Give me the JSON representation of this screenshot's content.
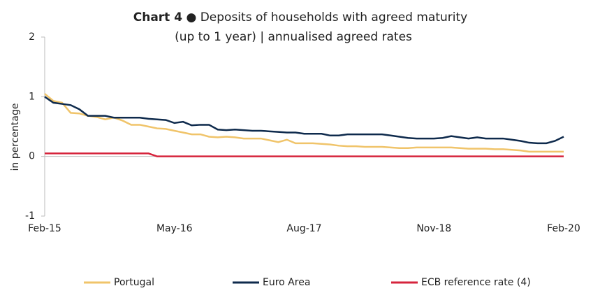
{
  "chart_data": {
    "type": "line",
    "title_prefix": "Chart 4",
    "title": [
      "● Deposits of households with agreed maturity",
      "(up to 1 year) | annualised agreed rates"
    ],
    "y_label": "in percentage",
    "categories": [
      "Feb-15",
      null,
      null,
      null,
      null,
      null,
      null,
      null,
      null,
      null,
      null,
      null,
      null,
      null,
      null,
      "May-16",
      null,
      null,
      null,
      null,
      null,
      null,
      null,
      null,
      null,
      null,
      null,
      null,
      null,
      null,
      "Aug-17",
      null,
      null,
      null,
      null,
      null,
      null,
      null,
      null,
      null,
      null,
      null,
      null,
      null,
      null,
      "Nov-18",
      null,
      null,
      null,
      null,
      null,
      null,
      null,
      null,
      null,
      null,
      null,
      null,
      null,
      null,
      "Feb-20"
    ],
    "ylim": [
      -1,
      2
    ],
    "yticks": [
      -1,
      0,
      1,
      2
    ],
    "grid": false,
    "legend": "bottom",
    "series": [
      {
        "name": "Portugal",
        "color": "#f0c46a",
        "values": [
          1.05,
          0.93,
          0.9,
          0.73,
          0.72,
          0.68,
          0.66,
          0.62,
          0.65,
          0.6,
          0.53,
          0.53,
          0.5,
          0.47,
          0.46,
          0.43,
          0.4,
          0.37,
          0.37,
          0.33,
          0.32,
          0.33,
          0.32,
          0.3,
          0.3,
          0.3,
          0.27,
          0.24,
          0.28,
          0.22,
          0.22,
          0.22,
          0.21,
          0.2,
          0.18,
          0.17,
          0.17,
          0.16,
          0.16,
          0.16,
          0.15,
          0.14,
          0.14,
          0.15,
          0.15,
          0.15,
          0.15,
          0.15,
          0.14,
          0.13,
          0.13,
          0.13,
          0.12,
          0.12,
          0.11,
          0.1,
          0.08,
          0.08,
          0.08,
          0.08,
          0.08
        ]
      },
      {
        "name": "Euro Area",
        "color": "#0e2a4c",
        "values": [
          1.0,
          0.9,
          0.88,
          0.86,
          0.79,
          0.68,
          0.68,
          0.68,
          0.65,
          0.65,
          0.65,
          0.65,
          0.63,
          0.62,
          0.61,
          0.56,
          0.58,
          0.52,
          0.53,
          0.53,
          0.45,
          0.44,
          0.45,
          0.44,
          0.43,
          0.43,
          0.42,
          0.41,
          0.4,
          0.4,
          0.38,
          0.38,
          0.38,
          0.35,
          0.35,
          0.37,
          0.37,
          0.37,
          0.37,
          0.37,
          0.35,
          0.33,
          0.31,
          0.3,
          0.3,
          0.3,
          0.31,
          0.34,
          0.32,
          0.3,
          0.32,
          0.3,
          0.3,
          0.3,
          0.28,
          0.26,
          0.23,
          0.22,
          0.22,
          0.26,
          0.33
        ]
      },
      {
        "name": "ECB reference rate (4)",
        "color": "#d6243c",
        "values": [
          0.05,
          0.05,
          0.05,
          0.05,
          0.05,
          0.05,
          0.05,
          0.05,
          0.05,
          0.05,
          0.05,
          0.05,
          0.05,
          0,
          0,
          0,
          0,
          0,
          0,
          0,
          0,
          0,
          0,
          0,
          0,
          0,
          0,
          0,
          0,
          0,
          0,
          0,
          0,
          0,
          0,
          0,
          0,
          0,
          0,
          0,
          0,
          0,
          0,
          0,
          0,
          0,
          0,
          0,
          0,
          0,
          0,
          0,
          0,
          0,
          0,
          0,
          0,
          0,
          0,
          0,
          0
        ]
      }
    ]
  }
}
